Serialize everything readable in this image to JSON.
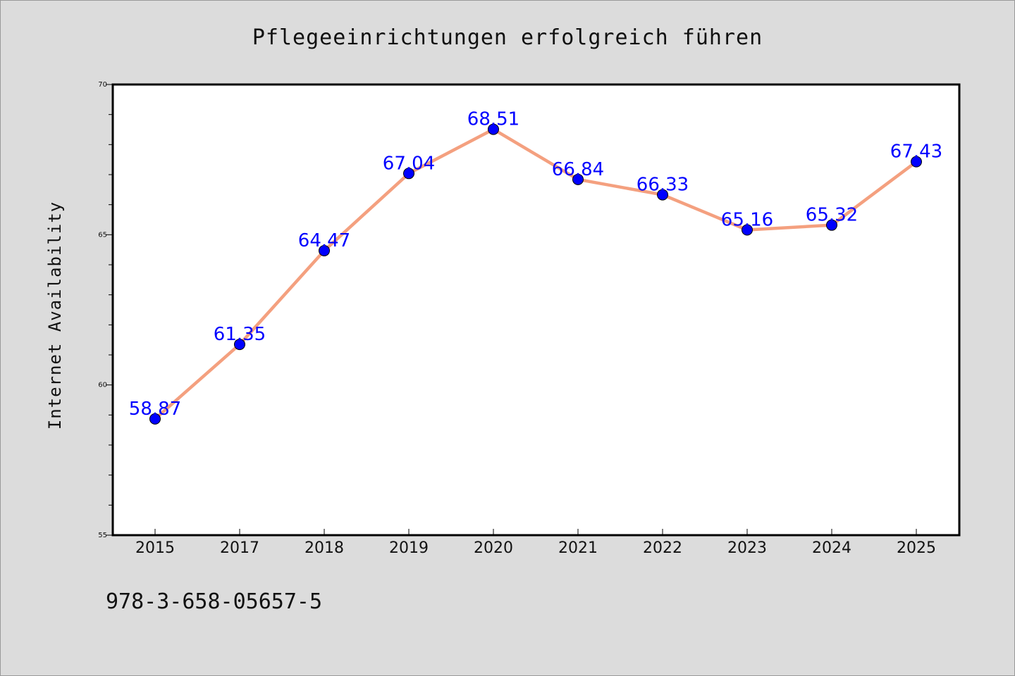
{
  "footer_text": "978-3-658-05657-5",
  "chart_data": {
    "type": "line",
    "title": "Pflegeeinrichtungen erfolgreich führen",
    "xlabel": "",
    "ylabel": "Internet Availability",
    "categories": [
      "2015",
      "2017",
      "2018",
      "2019",
      "2020",
      "2021",
      "2022",
      "2023",
      "2024",
      "2025"
    ],
    "series": [
      {
        "values": [
          58.87,
          61.35,
          64.47,
          67.04,
          68.51,
          66.84,
          66.33,
          65.16,
          65.32,
          67.43
        ],
        "line_color": "#f4a07f",
        "marker_color": "#0000ff"
      }
    ],
    "data_labels": [
      "58.87",
      "61.35",
      "64.47",
      "67.04",
      "68.51",
      "66.84",
      "66.33",
      "65.16",
      "65.32",
      "67.43"
    ],
    "ylim": [
      55,
      70
    ],
    "y_major_ticks": [
      55,
      60,
      65,
      70
    ],
    "y_minor_step": 1,
    "grid": false,
    "legend": "none",
    "plot_background": "#ffffff",
    "figure_background": "#dcdcdc"
  }
}
